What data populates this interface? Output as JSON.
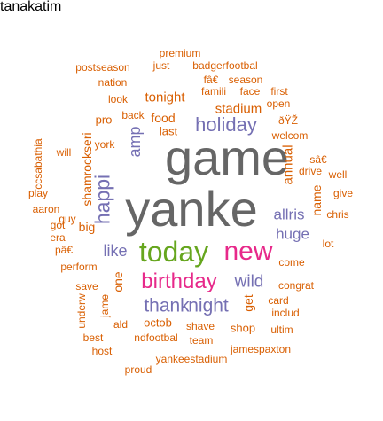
{
  "palette": {
    "orange": "#D95F02",
    "gray": "#666666",
    "purple": "#7570B3",
    "magenta": "#E7298A",
    "green": "#66A61E"
  },
  "words": [
    {
      "text": "game",
      "color": "gray",
      "rotated": false
    },
    {
      "text": "yanke",
      "color": "gray",
      "rotated": false
    },
    {
      "text": "today",
      "color": "green",
      "rotated": false
    },
    {
      "text": "new",
      "color": "magenta",
      "rotated": false
    },
    {
      "text": "birthday",
      "color": "magenta",
      "rotated": false
    },
    {
      "text": "holiday",
      "color": "purple",
      "rotated": false
    },
    {
      "text": "thank",
      "color": "purple",
      "rotated": false
    },
    {
      "text": "night",
      "color": "purple",
      "rotated": false
    },
    {
      "text": "wild",
      "color": "purple",
      "rotated": false
    },
    {
      "text": "like",
      "color": "purple",
      "rotated": false
    },
    {
      "text": "happi",
      "color": "purple",
      "rotated": true
    },
    {
      "text": "amp",
      "color": "purple",
      "rotated": true
    },
    {
      "text": "allris",
      "color": "purple",
      "rotated": false
    },
    {
      "text": "huge",
      "color": "purple",
      "rotated": false
    },
    {
      "text": "annual",
      "color": "orange",
      "rotated": true
    },
    {
      "text": "name",
      "color": "orange",
      "rotated": true
    },
    {
      "text": "stadium",
      "color": "orange",
      "rotated": false
    },
    {
      "text": "tonight",
      "color": "orange",
      "rotated": false
    },
    {
      "text": "food",
      "color": "orange",
      "rotated": false
    },
    {
      "text": "last",
      "color": "orange",
      "rotated": false
    },
    {
      "text": "shamrockseri",
      "color": "orange",
      "rotated": true
    },
    {
      "text": "big",
      "color": "orange",
      "rotated": false
    },
    {
      "text": "one",
      "color": "orange",
      "rotated": true
    },
    {
      "text": "get",
      "color": "orange",
      "rotated": true
    },
    {
      "text": "octob",
      "color": "orange",
      "rotated": false
    },
    {
      "text": "shop",
      "color": "orange",
      "rotated": false
    },
    {
      "text": "pro",
      "color": "orange",
      "rotated": false
    },
    {
      "text": "york",
      "color": "orange",
      "rotated": false
    },
    {
      "text": "guy",
      "color": "orange",
      "rotated": false
    },
    {
      "text": "pâ€",
      "color": "orange",
      "rotated": false
    },
    {
      "text": "perform",
      "color": "orange",
      "rotated": false
    },
    {
      "text": "save",
      "color": "orange",
      "rotated": false
    },
    {
      "text": "come",
      "color": "orange",
      "rotated": false
    },
    {
      "text": "congrat",
      "color": "orange",
      "rotated": false
    },
    {
      "text": "card",
      "color": "orange",
      "rotated": false
    },
    {
      "text": "famili",
      "color": "orange",
      "rotated": false
    },
    {
      "text": "face",
      "color": "orange",
      "rotated": false
    },
    {
      "text": "welcom",
      "color": "orange",
      "rotated": false
    },
    {
      "text": "ðŸŽ",
      "color": "orange",
      "rotated": false
    },
    {
      "text": "sâ€",
      "color": "orange",
      "rotated": false
    },
    {
      "text": "drive",
      "color": "orange",
      "rotated": false
    },
    {
      "text": "give",
      "color": "orange",
      "rotated": false
    },
    {
      "text": "chris",
      "color": "orange",
      "rotated": false
    },
    {
      "text": "well",
      "color": "orange",
      "rotated": false
    },
    {
      "text": "first",
      "color": "orange",
      "rotated": false
    },
    {
      "text": "open",
      "color": "orange",
      "rotated": false
    },
    {
      "text": "season",
      "color": "orange",
      "rotated": false
    },
    {
      "text": "fâ€",
      "color": "orange",
      "rotated": false
    },
    {
      "text": "premium",
      "color": "orange",
      "rotated": false
    },
    {
      "text": "just",
      "color": "orange",
      "rotated": false
    },
    {
      "text": "badgerfootbal",
      "color": "orange",
      "rotated": false
    },
    {
      "text": "postseason",
      "color": "orange",
      "rotated": false
    },
    {
      "text": "nation",
      "color": "orange",
      "rotated": false
    },
    {
      "text": "look",
      "color": "orange",
      "rotated": false
    },
    {
      "text": "back",
      "color": "orange",
      "rotated": false
    },
    {
      "text": "will",
      "color": "orange",
      "rotated": false
    },
    {
      "text": "ccsabathia",
      "color": "orange",
      "rotated": true
    },
    {
      "text": "play",
      "color": "orange",
      "rotated": false
    },
    {
      "text": "aaron",
      "color": "orange",
      "rotated": false
    },
    {
      "text": "got",
      "color": "orange",
      "rotated": false
    },
    {
      "text": "era",
      "color": "orange",
      "rotated": false
    },
    {
      "text": "lot",
      "color": "orange",
      "rotated": false
    },
    {
      "text": "underw",
      "color": "orange",
      "rotated": true
    },
    {
      "text": "jame",
      "color": "orange",
      "rotated": true
    },
    {
      "text": "ald",
      "color": "orange",
      "rotated": false
    },
    {
      "text": "best",
      "color": "orange",
      "rotated": false
    },
    {
      "text": "ndfootbal",
      "color": "orange",
      "rotated": false
    },
    {
      "text": "shave",
      "color": "orange",
      "rotated": false
    },
    {
      "text": "includ",
      "color": "orange",
      "rotated": false
    },
    {
      "text": "ultim",
      "color": "orange",
      "rotated": false
    },
    {
      "text": "team",
      "color": "orange",
      "rotated": false
    },
    {
      "text": "host",
      "color": "orange",
      "rotated": false
    },
    {
      "text": "jamespaxton",
      "color": "orange",
      "rotated": false
    },
    {
      "text": "yankeestadium",
      "color": "orange",
      "rotated": false
    },
    {
      "text": "proud",
      "color": "orange",
      "rotated": false
    },
    {
      "text": "tanakatim",
      "color": "orange",
      "rotated": false
    }
  ]
}
